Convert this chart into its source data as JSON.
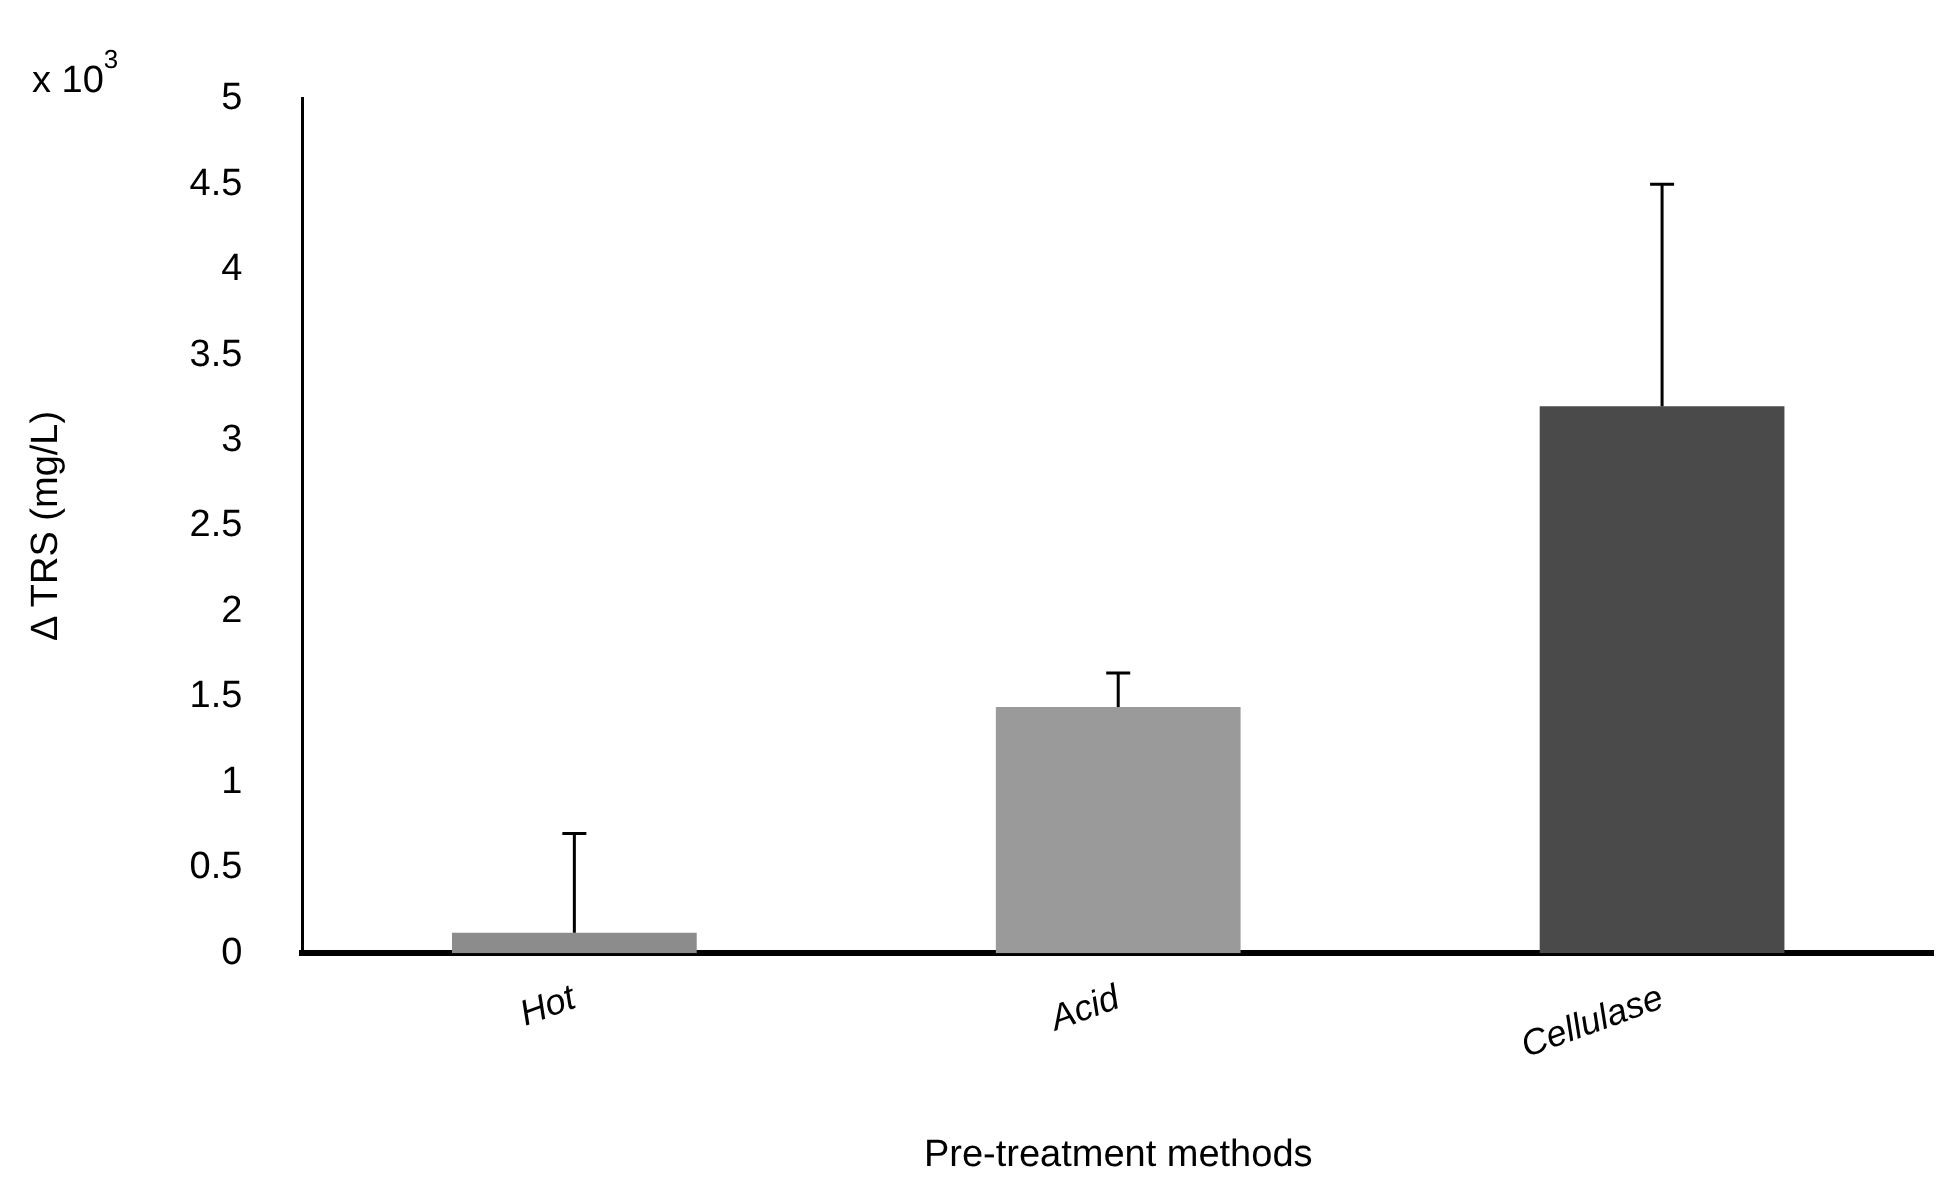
{
  "chart_data": {
    "type": "bar",
    "xlabel": "Pre-treatment methods",
    "ylabel": "Δ TRS (mg/L)",
    "annotations": [
      "x 10$^{3}$"
    ],
    "categories": [
      "Hot",
      "Acid",
      "Cellulase"
    ],
    "values": [
      0.12,
      1.44,
      3.2
    ],
    "colors": [
      "#8c8c8c",
      "#9a9a9a",
      "#4a4a4a"
    ],
    "errors": [
      [
        0.12,
        0.7
      ],
      [
        1.44,
        1.64
      ],
      [
        3.2,
        4.5
      ]
    ],
    "ylim": [
      0,
      5
    ],
    "yticks": [
      0,
      0.5,
      1,
      1.5,
      2,
      2.5,
      3,
      3.5,
      4,
      4.5,
      5
    ]
  }
}
